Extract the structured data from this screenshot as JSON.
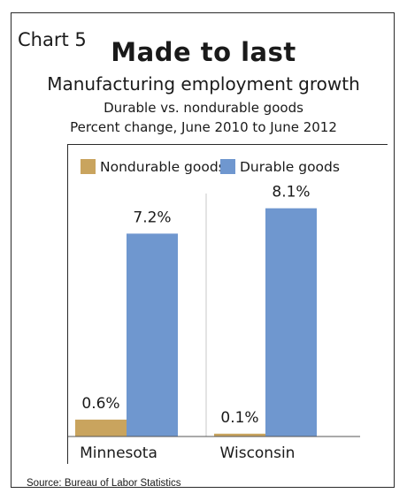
{
  "header": {
    "chart_label": "Chart 5",
    "title": "Made to last",
    "subtitle": "Manufacturing employment growth",
    "subtitle2": "Durable vs. nondurable goods",
    "subtitle3": "Percent change, June 2010 to June 2012"
  },
  "footer": {
    "source": "Source: Bureau of Labor Statistics"
  },
  "colors": {
    "nondurable": "#c9a45e",
    "durable": "#6f97cf",
    "divider": "#c8c8c8"
  },
  "chart_data": {
    "type": "bar",
    "title": "Made to last",
    "subtitle": "Manufacturing employment growth",
    "categories": [
      "Minnesota",
      "Wisconsin"
    ],
    "series": [
      {
        "name": "Nondurable goods",
        "values": [
          0.6,
          0.1
        ],
        "labels": [
          "0.6%",
          "0.1%"
        ]
      },
      {
        "name": "Durable goods",
        "values": [
          7.2,
          8.1
        ],
        "labels": [
          "7.2%",
          "8.1%"
        ]
      }
    ],
    "ylim": [
      0,
      9
    ],
    "xlabel": "",
    "ylabel": "",
    "legend": "top",
    "grid": false
  }
}
